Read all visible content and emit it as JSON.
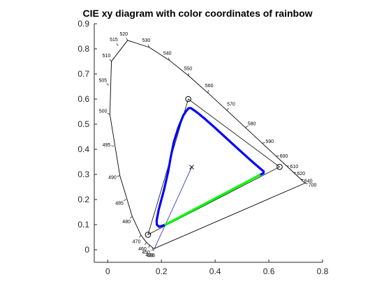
{
  "chart_data": {
    "type": "scatter",
    "title": "CIE xy diagram with color coordinates of rainbow",
    "xlabel": "",
    "ylabel": "",
    "xlim": [
      -0.05,
      0.8
    ],
    "ylim": [
      -0.05,
      0.9
    ],
    "x_ticks": [
      "0",
      "0.2",
      "0.4",
      "0.6",
      "0.8"
    ],
    "y_ticks": [
      "0",
      "0.1",
      "0.2",
      "0.3",
      "0.4",
      "0.5",
      "0.6",
      "0.7",
      "0.8",
      "0.9"
    ],
    "grid": false,
    "axes_box": false,
    "spectral_locus": {
      "x": [
        0.1741,
        0.174,
        0.1738,
        0.1733,
        0.1726,
        0.1714,
        0.1689,
        0.1644,
        0.1566,
        0.144,
        0.1241,
        0.0913,
        0.0454,
        0.0082,
        0.0139,
        0.0743,
        0.1547,
        0.2296,
        0.3016,
        0.3731,
        0.4441,
        0.5125,
        0.5752,
        0.627,
        0.6658,
        0.6915,
        0.7079,
        0.719,
        0.726,
        0.73,
        0.7347
      ],
      "y": [
        0.005,
        0.005,
        0.0049,
        0.0048,
        0.0048,
        0.0051,
        0.0069,
        0.0109,
        0.0177,
        0.0297,
        0.0578,
        0.1327,
        0.295,
        0.5384,
        0.7502,
        0.8338,
        0.8059,
        0.7543,
        0.6923,
        0.6245,
        0.5547,
        0.4866,
        0.4242,
        0.3725,
        0.334,
        0.3083,
        0.292,
        0.2809,
        0.274,
        0.27,
        0.2653
      ]
    },
    "wavelength_labels": [
      {
        "text": "400",
        "x": 0.1733,
        "y": 0.0048
      },
      {
        "text": "430",
        "x": 0.1689,
        "y": 0.0069
      },
      {
        "text": "450",
        "x": 0.1566,
        "y": 0.0177
      },
      {
        "text": "460",
        "x": 0.144,
        "y": 0.0297
      },
      {
        "text": "470",
        "x": 0.1241,
        "y": 0.0578
      },
      {
        "text": "480",
        "x": 0.0913,
        "y": 0.1327
      },
      {
        "text": "485",
        "x": 0.0687,
        "y": 0.2007
      },
      {
        "text": "490",
        "x": 0.0454,
        "y": 0.295
      },
      {
        "text": "495",
        "x": 0.0235,
        "y": 0.4127
      },
      {
        "text": "500",
        "x": 0.0082,
        "y": 0.5384
      },
      {
        "text": "505",
        "x": 0.0039,
        "y": 0.6548
      },
      {
        "text": "510",
        "x": 0.0139,
        "y": 0.7502
      },
      {
        "text": "515",
        "x": 0.0389,
        "y": 0.812
      },
      {
        "text": "520",
        "x": 0.0743,
        "y": 0.8338
      },
      {
        "text": "530",
        "x": 0.1547,
        "y": 0.8059
      },
      {
        "text": "540",
        "x": 0.2296,
        "y": 0.7543
      },
      {
        "text": "550",
        "x": 0.3016,
        "y": 0.6923
      },
      {
        "text": "560",
        "x": 0.3731,
        "y": 0.6245
      },
      {
        "text": "570",
        "x": 0.4441,
        "y": 0.5547
      },
      {
        "text": "580",
        "x": 0.5125,
        "y": 0.4866
      },
      {
        "text": "590",
        "x": 0.5752,
        "y": 0.4242
      },
      {
        "text": "600",
        "x": 0.627,
        "y": 0.3725
      },
      {
        "text": "610",
        "x": 0.6658,
        "y": 0.334
      },
      {
        "text": "620",
        "x": 0.6915,
        "y": 0.3083
      },
      {
        "text": "640",
        "x": 0.719,
        "y": 0.2809
      },
      {
        "text": "700",
        "x": 0.7347,
        "y": 0.2653
      }
    ],
    "gamut_primaries": {
      "x": [
        0.64,
        0.3,
        0.15
      ],
      "y": [
        0.33,
        0.6,
        0.06
      ]
    },
    "white_point": {
      "x": 0.3127,
      "y": 0.329
    },
    "series": [
      {
        "color": "#0000ff",
        "marker": "dot",
        "x": [
          0.215,
          0.2058,
          0.1915,
          0.1832,
          0.182,
          0.19,
          0.21,
          0.225,
          0.235,
          0.2463,
          0.2632,
          0.2818,
          0.2955,
          0.3015,
          0.31,
          0.335,
          0.36,
          0.395,
          0.44,
          0.49,
          0.5376,
          0.5705,
          0.5807,
          0.58,
          0.565
        ],
        "y": [
          0.1,
          0.0966,
          0.0912,
          0.1,
          0.115,
          0.16,
          0.24,
          0.31,
          0.37,
          0.4293,
          0.4864,
          0.5356,
          0.5571,
          0.564,
          0.564,
          0.545,
          0.523,
          0.49,
          0.446,
          0.397,
          0.3513,
          0.321,
          0.312,
          0.305,
          0.297
        ]
      },
      {
        "color": "#00ff00",
        "marker": "dot",
        "x": [
          0.215,
          0.565
        ],
        "y": [
          0.1,
          0.297
        ]
      }
    ],
    "annotation_line": {
      "color": "#1f1fbf",
      "x": [
        0.3127,
        0.215,
        0.1741
      ],
      "y": [
        0.329,
        0.1,
        0.005
      ]
    }
  }
}
